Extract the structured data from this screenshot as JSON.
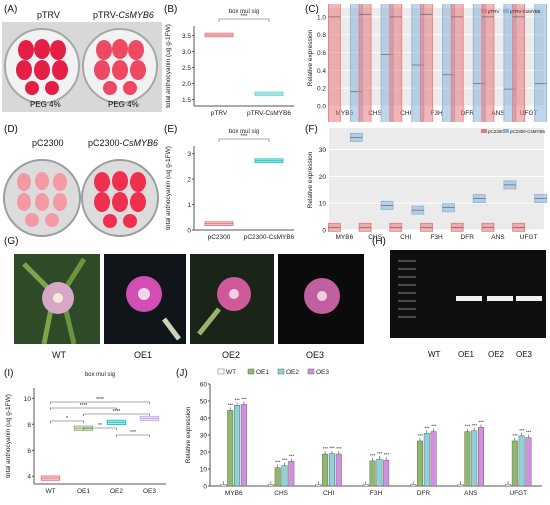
{
  "panels": {
    "A": {
      "letter": "(A)",
      "left_label": "pTRV",
      "right_label": "pTRV-",
      "right_gene": "CsMYB6",
      "peg_left": "PEG 4%",
      "peg_right": "PEG 4%"
    },
    "D": {
      "letter": "(D)",
      "left_label": "pC2300",
      "right_label": "pC2300-",
      "right_gene": "CsMYB6"
    },
    "G": {
      "letter": "(G)",
      "captions": [
        "WT",
        "OE1",
        "OE2",
        "OE3"
      ]
    },
    "H": {
      "letter": "(H)",
      "lanes": [
        "WT",
        "OE1",
        "OE2",
        "OE3"
      ]
    }
  },
  "colors": {
    "red": "#e8787d",
    "blue": "#8ab3da",
    "cyan": "#6fd3d6",
    "violet": "#c9a7e6",
    "teal": "#22c2c7",
    "green": "#8fb86c",
    "grey_panel": "#ebebeb"
  },
  "chart_data": [
    {
      "id": "B",
      "letter": "(B)",
      "type": "box",
      "title": "box mul sig",
      "sig": "***",
      "ylabel": "total anthocyanin (ug g-1FW)",
      "categories": [
        "pTRV",
        "pTRV-CsMYB6"
      ],
      "values": [
        3.52,
        1.68
      ],
      "ylim": [
        1.3,
        3.8
      ],
      "yticks": [
        1.5,
        2.0,
        2.5,
        3.0,
        3.5
      ],
      "colors": [
        "#e8787d",
        "#6fd3d6"
      ]
    },
    {
      "id": "C",
      "letter": "(C)",
      "type": "bar",
      "ylabel": "Relative expression",
      "legend": [
        "pTRV",
        "pTRV-CsMYB6"
      ],
      "categories": [
        "MYB6",
        "CHS",
        "CHI",
        "F3H",
        "DFR",
        "ANS",
        "UFGT"
      ],
      "series": [
        {
          "name": "pTRV",
          "values": [
            1.0,
            1.03,
            1.0,
            1.03,
            1.0,
            1.0,
            1.0
          ],
          "color": "#e8787d"
        },
        {
          "name": "pTRV-CsMYB6",
          "values": [
            0.16,
            0.58,
            0.46,
            0.35,
            0.25,
            0.19,
            0.25
          ],
          "color": "#8ab3da"
        }
      ],
      "ylim": [
        0,
        1.1
      ],
      "yticks": [
        0.0,
        0.2,
        0.4,
        0.6,
        0.8,
        1.0
      ],
      "sig_marks": [
        "*",
        "*",
        "",
        "*",
        "*",
        "",
        ""
      ],
      "grid": true
    },
    {
      "id": "E",
      "letter": "(E)",
      "type": "box",
      "title": "box mul sig",
      "sig": "***",
      "ylabel": "total anthocyanin (ug g-1FW)",
      "categories": [
        "pC2300",
        "pC2300-CsMYB6"
      ],
      "values": [
        0.25,
        2.72
      ],
      "ylim": [
        0,
        3.3
      ],
      "yticks": [
        0,
        1,
        2,
        3
      ],
      "colors": [
        "#e8787d",
        "#22c2c7"
      ]
    },
    {
      "id": "F",
      "letter": "(F)",
      "type": "bar",
      "ylabel": "Relative expression",
      "legend": [
        "pC2300",
        "pC2300-CsMYB6"
      ],
      "categories": [
        "MYB6",
        "CHS",
        "CHI",
        "F3H",
        "DFR",
        "ANS",
        "UFGT"
      ],
      "series": [
        {
          "name": "pC2300",
          "values": [
            1.0,
            1.0,
            1.0,
            1.0,
            1.0,
            1.0,
            1.0
          ],
          "color": "#e8787d"
        },
        {
          "name": "pC2300-CsMYB6",
          "values": [
            34.5,
            9.2,
            7.4,
            8.3,
            11.7,
            16.8,
            11.7
          ],
          "color": "#8ab3da"
        }
      ],
      "ylim": [
        0,
        38
      ],
      "yticks": [
        0,
        10,
        20,
        30
      ],
      "grid": true
    },
    {
      "id": "I",
      "letter": "(I)",
      "type": "box",
      "title": "box mul sig",
      "ylabel": "total anthocyanin (ug g-1FW)",
      "categories": [
        "WT",
        "OE1",
        "OE2",
        "OE3"
      ],
      "values": [
        3.85,
        7.7,
        8.15,
        8.45
      ],
      "ylim": [
        3.4,
        10.8
      ],
      "yticks": [
        4,
        6,
        8,
        10
      ],
      "colors": [
        "#e8787d",
        "#8fb86c",
        "#22c2c7",
        "#c9a7e6"
      ],
      "sig_labels": [
        "****",
        "****",
        "****",
        "*",
        "**",
        "***"
      ]
    },
    {
      "id": "J",
      "letter": "(J)",
      "type": "bar",
      "ylabel": "Relative expression",
      "legend": [
        "WT",
        "OE1",
        "OE2",
        "OE3"
      ],
      "categories": [
        "MYB6",
        "CHS",
        "CHI",
        "F3H",
        "DFR",
        "ANS",
        "UFGT"
      ],
      "series": [
        {
          "name": "WT",
          "values": [
            1,
            1,
            1,
            1,
            1,
            1,
            1
          ],
          "color": "#ffffff"
        },
        {
          "name": "OE1",
          "values": [
            44.5,
            10.8,
            18.8,
            14.8,
            26.5,
            32.0,
            26.5
          ],
          "color": "#8fb86c"
        },
        {
          "name": "OE2",
          "values": [
            47.5,
            12.0,
            19.0,
            15.8,
            31.0,
            32.5,
            29.5
          ],
          "color": "#8fd3d8"
        },
        {
          "name": "OE3",
          "values": [
            48.0,
            14.5,
            18.8,
            15.2,
            32.0,
            34.5,
            28.5
          ],
          "color": "#d38fe0"
        }
      ],
      "ylim": [
        0,
        60
      ],
      "yticks": [
        0,
        10,
        20,
        30,
        40,
        50,
        60
      ],
      "sig_marks": [
        "***",
        "***",
        "***",
        "***"
      ]
    }
  ]
}
